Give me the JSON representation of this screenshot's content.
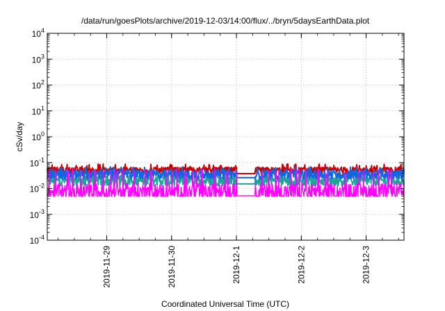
{
  "chart_data": {
    "type": "line",
    "title": "/data/run/goesPlots/archive/2019-12-03/14:00/flux/../bryn/5daysEarthData.plot",
    "xlabel": "Coordinated Universal Time (UTC)",
    "ylabel": "cSv/day",
    "yscale": "log",
    "ylim": [
      0.0001,
      10000
    ],
    "xlim": [
      "2019-11-28 02:00",
      "2019-12-03 14:00"
    ],
    "grid": true,
    "legend": "none",
    "x_ticks": [
      "2019-11-29",
      "2019-11-30",
      "2019-12-1",
      "2019-12-2",
      "2019-12-3"
    ],
    "y_ticks": [
      {
        "base": "10",
        "exp": "-4",
        "value": 0.0001
      },
      {
        "base": "10",
        "exp": "-3",
        "value": 0.001
      },
      {
        "base": "10",
        "exp": "-2",
        "value": 0.01
      },
      {
        "base": "10",
        "exp": "-1",
        "value": 0.1
      },
      {
        "base": "10",
        "exp": "0",
        "value": 1
      },
      {
        "base": "10",
        "exp": "1",
        "value": 10
      },
      {
        "base": "10",
        "exp": "2",
        "value": 100
      },
      {
        "base": "10",
        "exp": "3",
        "value": 1000
      },
      {
        "base": "10",
        "exp": "4",
        "value": 10000
      }
    ],
    "gap": [
      "2019-12-01 00:00",
      "2019-12-01 07:00"
    ],
    "series": [
      {
        "color": "#cc0000",
        "baseline": 0.05,
        "spike_max": 0.09,
        "dip_min": 0.035,
        "noise": 0.25
      },
      {
        "color": "#1fa39a",
        "baseline": 0.02,
        "spike_max": 0.04,
        "dip_min": 0.01,
        "noise": 0.4
      },
      {
        "color": "#1166dd",
        "baseline": 0.035,
        "spike_max": 0.07,
        "dip_min": 0.015,
        "noise": 0.35
      },
      {
        "color": "#ff00ff",
        "baseline": 0.007,
        "spike_max": 0.06,
        "dip_min": 0.005,
        "noise": 0.7
      }
    ]
  }
}
